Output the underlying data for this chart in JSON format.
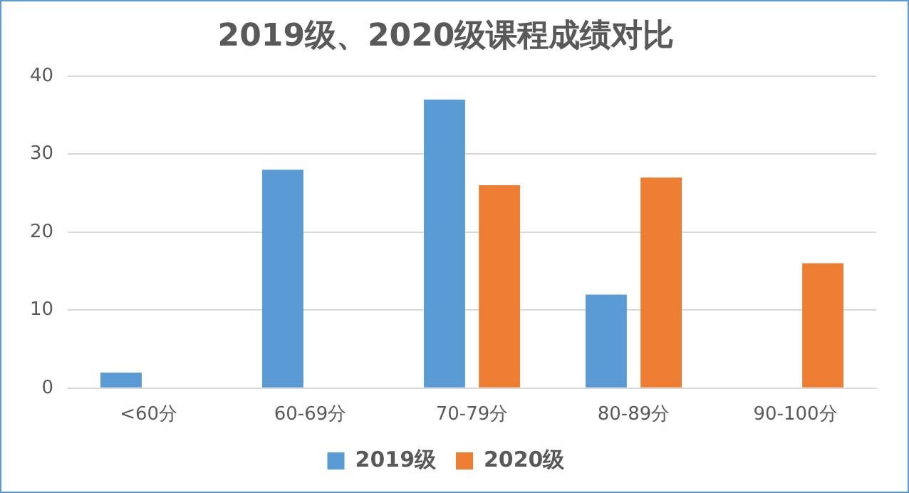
{
  "chart_data": {
    "type": "bar",
    "title": "2019级、2020级课程成绩对比",
    "categories": [
      "<60分",
      "60-69分",
      "70-79分",
      "80-89分",
      "90-100分"
    ],
    "series": [
      {
        "name": "2019级",
        "color": "#5b9bd5",
        "values": [
          2,
          28,
          37,
          12,
          0
        ]
      },
      {
        "name": "2020级",
        "color": "#ed7d31",
        "values": [
          0,
          0,
          26,
          27,
          16
        ]
      }
    ],
    "ylim": [
      0,
      40
    ],
    "yticks": [
      0,
      10,
      20,
      30,
      40
    ],
    "grid": "y",
    "legend": "bottom"
  }
}
